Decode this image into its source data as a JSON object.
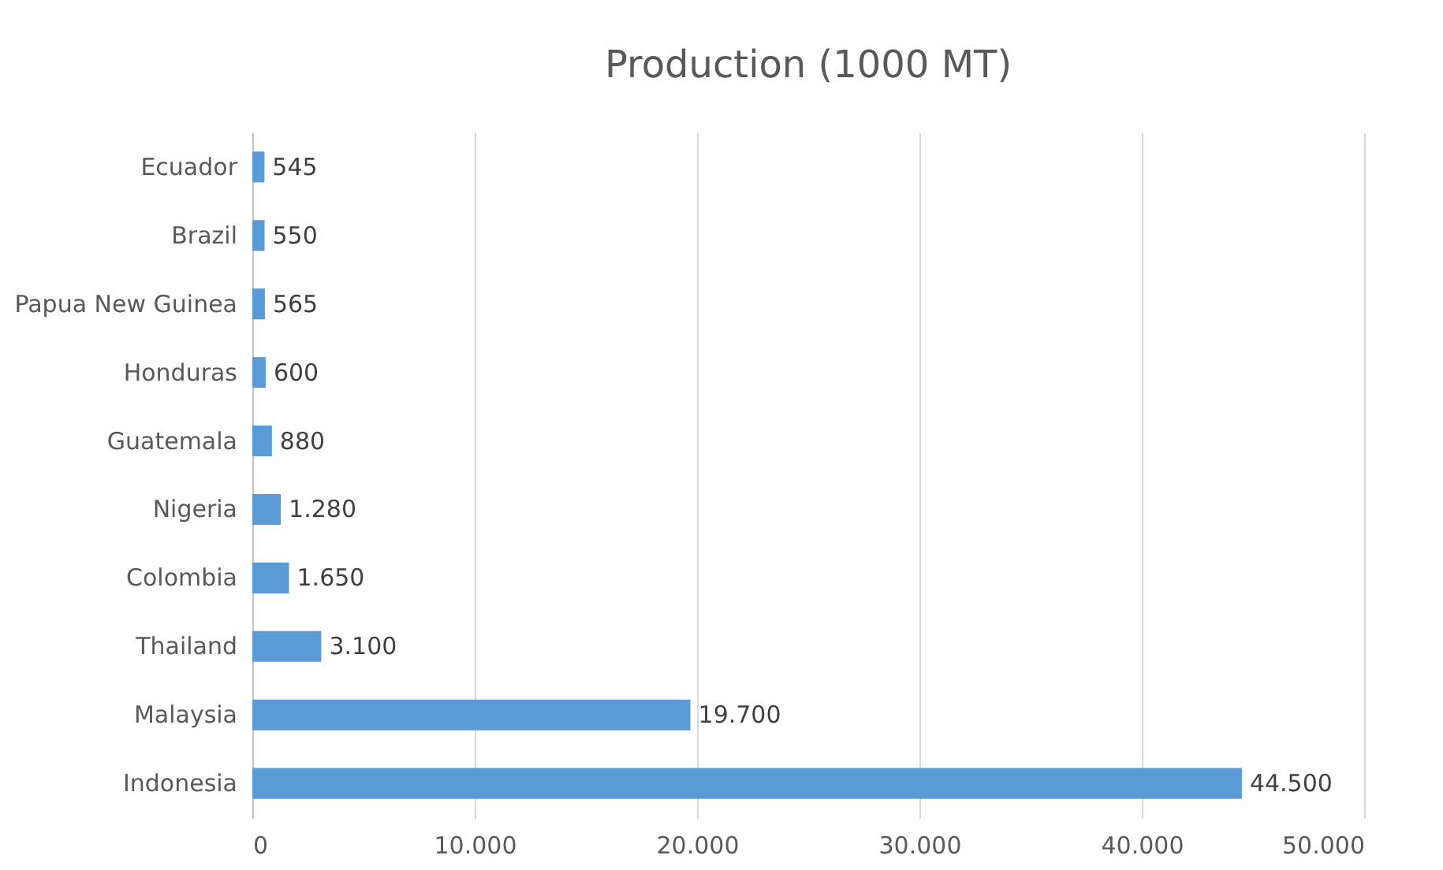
{
  "chart_data": {
    "type": "bar",
    "orientation": "horizontal",
    "title": "Production (1000 MT)",
    "categories": [
      "Ecuador",
      "Brazil",
      "Papua New Guinea",
      "Honduras",
      "Guatemala",
      "Nigeria",
      "Colombia",
      "Thailand",
      "Malaysia",
      "Indonesia"
    ],
    "values": [
      545,
      550,
      565,
      600,
      880,
      1280,
      1650,
      3100,
      19700,
      44500
    ],
    "value_labels": [
      "545",
      "550",
      "565",
      "600",
      "880",
      "1.280",
      "1.650",
      "3.100",
      "19.700",
      "44.500"
    ],
    "color": "#5b9bd5",
    "xlim": [
      0,
      50000
    ],
    "xticks": [
      0,
      {
        "value": 10000,
        "label": "10.000"
      },
      {
        "value": 20000,
        "label": "20.000"
      },
      {
        "value": 30000,
        "label": "30.000"
      },
      {
        "value": 40000,
        "label": "40.000"
      },
      {
        "value": 50000,
        "label": "50.000"
      }
    ],
    "grid": "x"
  }
}
